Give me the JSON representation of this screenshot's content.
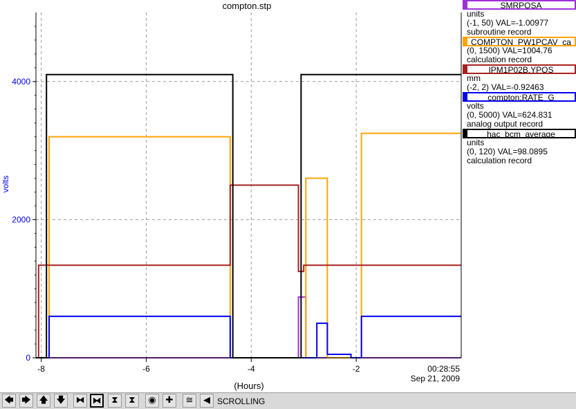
{
  "chart_data": {
    "type": "line",
    "title": "compton.stp",
    "xlabel": "(Hours)",
    "ylabel": "volts",
    "xlim": [
      -8.1,
      0.0
    ],
    "ylim": [
      0,
      5000
    ],
    "x_ticks": [
      -8,
      -6,
      -4,
      -2
    ],
    "x_tick_labels": [
      "-8",
      "-6",
      "-4",
      "-2"
    ],
    "y_ticks": [
      0,
      2000,
      4000
    ],
    "y_tick_labels": [
      "0",
      "2000",
      "4000"
    ],
    "end_time": "00:28:55",
    "end_date": "Sep 21, 2009",
    "grid": true,
    "legend_position": "right",
    "series": [
      {
        "name": "SMRPOSA",
        "units": "units",
        "range": "(-1, 50) VAL=-1.00977",
        "record": "subroutine record",
        "color": "#a030d8",
        "x": [
          -8.1,
          -3.1,
          -3.1,
          -3.02,
          -3.02,
          -2.96,
          -2.96,
          0.0
        ],
        "y": [
          0,
          0,
          880,
          880,
          880,
          880,
          0,
          0
        ]
      },
      {
        "name": "COMPTON_PW1PCAV_ca",
        "units": "",
        "range": "(0, 1500) VAL=1004.76",
        "record": "calculation record",
        "color": "#ffa500",
        "x": [
          -8.1,
          -7.85,
          -7.85,
          -4.4,
          -4.4,
          -2.96,
          -2.96,
          -2.55,
          -2.55,
          -1.9,
          -1.9,
          0.0
        ],
        "y": [
          0,
          0,
          3200,
          3200,
          0,
          0,
          2600,
          2600,
          0,
          0,
          3250,
          3250
        ]
      },
      {
        "name": "IPM1P02B.YPOS",
        "units": "mm",
        "range": "(-2, 2) VAL=-0.92463",
        "record": "",
        "color": "#a82020",
        "x": [
          -8.1,
          -8.05,
          -8.05,
          -4.4,
          -4.4,
          -3.1,
          -3.1,
          -3.0,
          -3.0,
          0.0
        ],
        "y": [
          0,
          0,
          1340,
          1340,
          2500,
          2500,
          1250,
          1250,
          1340,
          1340
        ]
      },
      {
        "name": "compton:RATE_G",
        "units": "volts",
        "range": "(0, 5000) VAL=624.831",
        "record": "analog output record",
        "color": "#0000ee",
        "x": [
          -8.1,
          -7.85,
          -7.85,
          -4.4,
          -4.4,
          -2.75,
          -2.75,
          -2.55,
          -2.55,
          -2.1,
          -2.1,
          -1.9,
          -1.9,
          0.0
        ],
        "y": [
          0,
          0,
          600,
          600,
          0,
          0,
          500,
          500,
          50,
          50,
          0,
          0,
          600,
          600
        ]
      },
      {
        "name": "hac_bcm_average",
        "units": "units",
        "range": "(0, 120) VAL=98.0895",
        "record": "calculation record",
        "color": "#000000",
        "x": [
          -8.1,
          -7.9,
          -7.9,
          -4.35,
          -4.35,
          -3.05,
          -3.05,
          -2.05,
          -2.05,
          0.0
        ],
        "y": [
          0,
          0,
          4100,
          4100,
          0,
          0,
          4100,
          4100,
          4100,
          4100
        ]
      }
    ]
  },
  "toolbar": {
    "scroll_left": "🡄",
    "scroll_right": "🡆",
    "scroll_up": "🡅",
    "scroll_down": "🡇",
    "zoom_x_in": "⧓",
    "zoom_x_out": "⧓",
    "zoom_y_in": "⧗",
    "zoom_y_out": "⧗",
    "reset": "◉",
    "add": "✚",
    "auto_scale": "≅",
    "toggle": "◀",
    "status_label": "SCROLLING"
  }
}
